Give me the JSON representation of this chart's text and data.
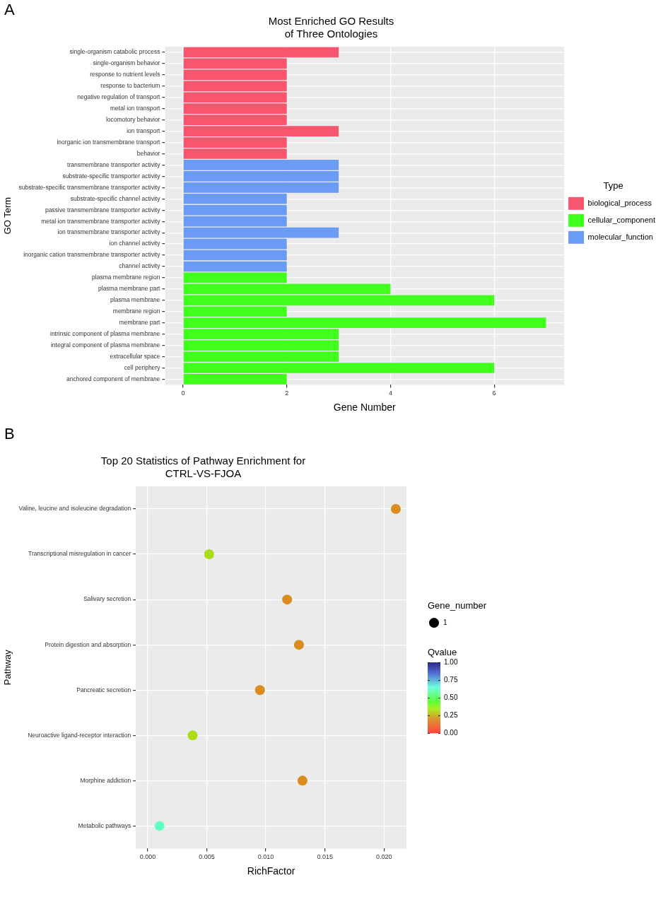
{
  "chart_data": [
    {
      "type": "bar",
      "orientation": "horizontal",
      "stacked": true,
      "title": "Most Enriched GO Results\nof Three Ontologies",
      "xlabel": "Gene Number",
      "ylabel": "GO Term",
      "legend_title": "Type",
      "legend": "right",
      "grid": true,
      "annotations": [
        "A"
      ],
      "categories": [
        "single-organism catabolic process",
        "single-organism behavior",
        "response to nutrient levels",
        "response to bacterium",
        "negative regulation of transport",
        "metal ion transport",
        "locomotory behavior",
        "ion transport",
        "inorganic ion transmembrane transport",
        "behavior",
        "transmembrane transporter activity",
        "substrate-specific transporter activity",
        "substrate-specific transmembrane transporter activity",
        "substrate-specific channel activity",
        "passive transmembrane transporter activity",
        "metal ion transmembrane transporter activity",
        "ion transmembrane transporter activity",
        "ion channel activity",
        "inorganic cation transmembrane transporter activity",
        "channel activity",
        "plasma membrane region",
        "plasma membrane part",
        "plasma membrane",
        "membrane region",
        "membrane part",
        "intrinsic component of plasma membrane",
        "integral component of plasma membrane",
        "extracellular space",
        "cell periphery",
        "anchored component of membrane"
      ],
      "series": [
        {
          "name": "biological_process",
          "color": "#f8566f",
          "values": [
            3,
            2,
            2,
            2,
            2,
            2,
            2,
            3,
            2,
            2,
            null,
            null,
            null,
            null,
            null,
            null,
            null,
            null,
            null,
            null,
            null,
            null,
            null,
            null,
            null,
            null,
            null,
            null,
            null,
            null
          ]
        },
        {
          "name": "cellular_component",
          "color": "#40ff1a",
          "values": [
            null,
            null,
            null,
            null,
            null,
            null,
            null,
            null,
            null,
            null,
            null,
            null,
            null,
            null,
            null,
            null,
            null,
            null,
            null,
            null,
            2,
            4,
            6,
            2,
            7,
            3,
            3,
            3,
            6,
            2
          ]
        },
        {
          "name": "molecular_function",
          "color": "#6b9cf5",
          "values": [
            null,
            null,
            null,
            null,
            null,
            null,
            null,
            null,
            null,
            null,
            3,
            3,
            3,
            2,
            2,
            2,
            3,
            2,
            2,
            2,
            null,
            null,
            null,
            null,
            null,
            null,
            null,
            null,
            null,
            null
          ]
        }
      ],
      "xlim": [
        -0.35,
        7.35
      ],
      "xticks": [
        0,
        2,
        4,
        6
      ]
    },
    {
      "type": "bubble",
      "orientation": "horizontal",
      "title": "Top 20 Statistics of Pathway Enrichment for\nCTRL-VS-FJOA",
      "xlabel": "RichFactor",
      "ylabel": "Pathway",
      "legend_title": "Gene_number",
      "clabel": "Qvalue",
      "grid": true,
      "annotations": [
        "B"
      ],
      "categories": [
        "Valine, leucine and isoleucine degradation",
        "Transcriptional misregulation in cancer",
        "Salivary secretion",
        "Protein digestion and absorption",
        "Pancreatic secretion",
        "Neuroactive ligand-receptor interaction",
        "Morphine addiction",
        "Metabolic pathways"
      ],
      "values": [
        0.021,
        0.0052,
        0.0118,
        0.0128,
        0.0095,
        0.0038,
        0.0131,
        0.001
      ],
      "sizes": [
        1,
        1,
        1,
        1,
        1,
        1,
        1,
        1
      ],
      "size_legend": [
        1
      ],
      "cvalues": [
        0.2,
        0.32,
        0.2,
        0.2,
        0.2,
        0.32,
        0.2,
        0.62
      ],
      "clim": [
        0,
        1
      ],
      "cticks": [
        {
          "value": 0,
          "label": "0.00"
        },
        0.25,
        {
          "value": 0.5,
          "label": "0.50"
        },
        0.75,
        {
          "value": 1,
          "label": "1.00"
        }
      ],
      "xlim": [
        -0.001,
        0.0219
      ],
      "xticks": [
        {
          "value": 0,
          "label": "0.000"
        },
        0.005,
        {
          "value": 0.01,
          "label": "0.010"
        },
        0.015,
        {
          "value": 0.02,
          "label": "0.020"
        }
      ]
    }
  ]
}
